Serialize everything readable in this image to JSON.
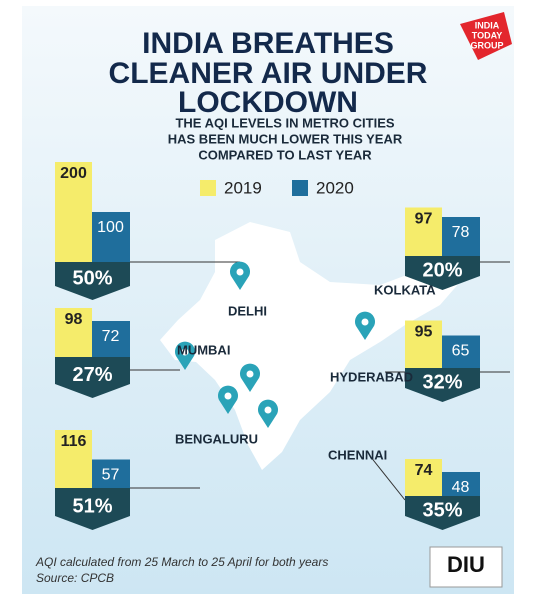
{
  "header": {
    "title_lines": [
      "INDIA BREATHES",
      "CLEANER AIR UNDER",
      "LOCKDOWN"
    ],
    "subtitle_lines": [
      "THE AQI LEVELS IN METRO CITIES",
      "HAS BEEN MUCH LOWER THIS YEAR",
      "COMPARED TO LAST YEAR"
    ],
    "logo": [
      "INDIA",
      "TODAY",
      "GROUP"
    ]
  },
  "legend": [
    {
      "name": "2019",
      "color": "#f5ec6b"
    },
    {
      "name": "2020",
      "color": "#1f6e9c"
    }
  ],
  "cities": [
    {
      "name": "DELHI",
      "v2019": 200,
      "v2020": 100,
      "reduction": "50%"
    },
    {
      "name": "KOLKATA",
      "v2019": 97,
      "v2020": 78,
      "reduction": "20%"
    },
    {
      "name": "MUMBAI",
      "v2019": 98,
      "v2020": 72,
      "reduction": "27%"
    },
    {
      "name": "HYDERABAD",
      "v2019": 95,
      "v2020": 65,
      "reduction": "32%"
    },
    {
      "name": "BENGALURU",
      "v2019": 116,
      "v2020": 57,
      "reduction": "51%"
    },
    {
      "name": "CHENNAI",
      "v2019": 74,
      "v2020": 48,
      "reduction": "35%"
    }
  ],
  "footer": {
    "note": "AQI calculated from 25 March to 25 April for both years",
    "source": "Source: CPCB",
    "badge": "DIU"
  }
}
